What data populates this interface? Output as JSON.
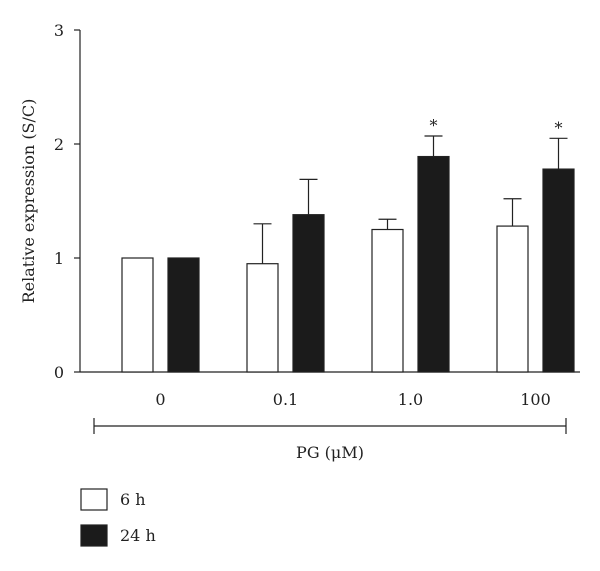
{
  "chart_data": {
    "type": "bar",
    "categories": [
      "0",
      "0.1",
      "1.0",
      "100"
    ],
    "series": [
      {
        "name": "6 h",
        "values": [
          1.0,
          0.95,
          1.25,
          1.28
        ],
        "errors": [
          0,
          0.35,
          0.09,
          0.24
        ],
        "significant": [
          false,
          false,
          false,
          false
        ],
        "fill": "#ffffff"
      },
      {
        "name": "24 h",
        "values": [
          1.0,
          1.38,
          1.89,
          1.78
        ],
        "errors": [
          0,
          0.31,
          0.18,
          0.27
        ],
        "significant": [
          false,
          false,
          true,
          true
        ],
        "fill": "#1b1b1b"
      }
    ],
    "significance_marker": "*",
    "ylabel": "Relative expression (S/C)",
    "xlabel": "PG (μM)",
    "ylim": [
      0,
      3
    ],
    "yticks": [
      "0",
      "1",
      "2",
      "3"
    ],
    "legend_position": "bottom-left",
    "grid": false
  },
  "colors": {
    "axis": "#222222",
    "bar_6h": "#ffffff",
    "bar_24h": "#1b1b1b"
  }
}
